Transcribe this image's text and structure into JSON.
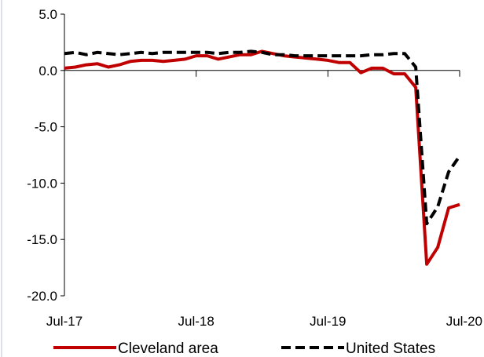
{
  "chart_data": {
    "type": "line",
    "title": "",
    "xlabel": "",
    "ylabel": "",
    "ylim": [
      -20,
      5
    ],
    "xlim": [
      "2017-07",
      "2020-07"
    ],
    "y_ticks": [
      5,
      0,
      -5,
      -10,
      -15,
      -20
    ],
    "y_tick_labels": [
      "5.0",
      "0.0",
      "-5.0",
      "-10.0",
      "-15.0",
      "-20.0"
    ],
    "x_ticks": [
      "2017-07",
      "2018-07",
      "2019-07",
      "2020-07"
    ],
    "x_tick_labels": [
      "Jul-17",
      "Jul-18",
      "Jul-19",
      "Jul-20"
    ],
    "grid": false,
    "legend_position": "bottom",
    "x": [
      "2017-07",
      "2017-08",
      "2017-09",
      "2017-10",
      "2017-11",
      "2017-12",
      "2018-01",
      "2018-02",
      "2018-03",
      "2018-04",
      "2018-05",
      "2018-06",
      "2018-07",
      "2018-08",
      "2018-09",
      "2018-10",
      "2018-11",
      "2018-12",
      "2019-01",
      "2019-02",
      "2019-03",
      "2019-04",
      "2019-05",
      "2019-06",
      "2019-07",
      "2019-08",
      "2019-09",
      "2019-10",
      "2019-11",
      "2019-12",
      "2020-01",
      "2020-02",
      "2020-03",
      "2020-04",
      "2020-05",
      "2020-06",
      "2020-07"
    ],
    "series": [
      {
        "name": "Cleveland area",
        "color": "#c00000",
        "dash": "solid",
        "values": [
          0.2,
          0.3,
          0.5,
          0.6,
          0.3,
          0.5,
          0.8,
          0.9,
          0.9,
          0.8,
          0.9,
          1.0,
          1.3,
          1.3,
          1.0,
          1.2,
          1.4,
          1.4,
          1.7,
          1.5,
          1.3,
          1.2,
          1.1,
          1.0,
          0.9,
          0.7,
          0.7,
          -0.2,
          0.2,
          0.2,
          -0.3,
          -0.3,
          -1.5,
          -17.2,
          -15.7,
          -12.2,
          -11.9
        ]
      },
      {
        "name": "United States",
        "color": "#000000",
        "dash": "dashed",
        "values": [
          1.5,
          1.6,
          1.4,
          1.6,
          1.5,
          1.4,
          1.5,
          1.6,
          1.5,
          1.6,
          1.6,
          1.6,
          1.6,
          1.6,
          1.5,
          1.6,
          1.6,
          1.7,
          1.6,
          1.4,
          1.4,
          1.3,
          1.3,
          1.3,
          1.3,
          1.3,
          1.3,
          1.3,
          1.4,
          1.4,
          1.5,
          1.5,
          0.3,
          -13.6,
          -12.1,
          -9.0,
          -7.6
        ]
      }
    ]
  }
}
